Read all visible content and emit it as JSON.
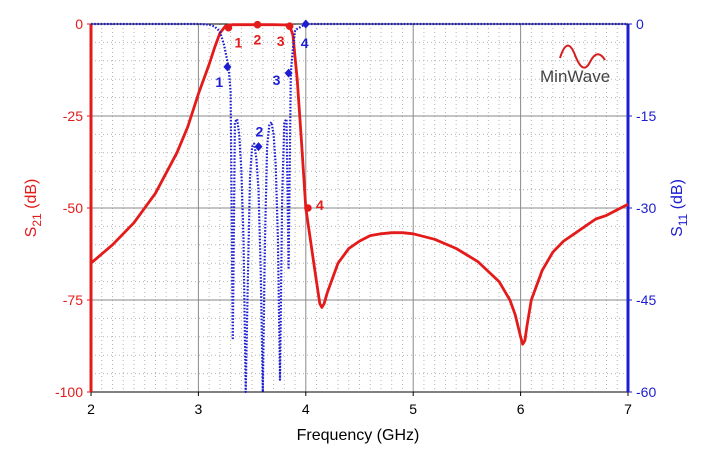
{
  "chart_data": {
    "type": "line",
    "xlabel": "Frequency (GHz)",
    "xlim": [
      2,
      7
    ],
    "x_ticks": [
      "2",
      "3",
      "4",
      "5",
      "6",
      "7"
    ],
    "y_left": {
      "label_main": "S",
      "label_sub": "21",
      "label_unit": " (dB)",
      "lim": [
        -100,
        0
      ],
      "ticks": [
        "0",
        "-25",
        "-50",
        "-75",
        "-100"
      ],
      "color": "#e31b1b"
    },
    "y_right": {
      "label_main": "S",
      "label_sub": "11",
      "label_unit": " (dB)",
      "lim": [
        -60,
        0
      ],
      "ticks": [
        "0",
        "-15",
        "-30",
        "-45",
        "-60"
      ],
      "color": "#1d1dd1"
    },
    "grid": true,
    "logo": {
      "text": "MinWave",
      "color": "#d42020"
    },
    "series": [
      {
        "axis": "left",
        "style": "solid",
        "color": "#e31b1b",
        "x": [
          2.0,
          2.2,
          2.4,
          2.6,
          2.8,
          2.9,
          3.0,
          3.1,
          3.15,
          3.2,
          3.25,
          3.28,
          3.32,
          3.4,
          3.5,
          3.6,
          3.7,
          3.8,
          3.85,
          3.88,
          3.92,
          3.96,
          4.0,
          4.03,
          4.06,
          4.1,
          4.13,
          4.15,
          4.17,
          4.2,
          4.3,
          4.4,
          4.5,
          4.6,
          4.7,
          4.8,
          4.9,
          5.0,
          5.2,
          5.4,
          5.6,
          5.8,
          5.9,
          5.95,
          6.0,
          6.02,
          6.04,
          6.06,
          6.1,
          6.2,
          6.3,
          6.4,
          6.5,
          6.6,
          6.7,
          6.8,
          6.9,
          7.0
        ],
        "y": [
          -65,
          -60,
          -54,
          -46,
          -35,
          -28,
          -19,
          -11,
          -6.5,
          -2.5,
          -0.6,
          -0.3,
          -0.2,
          -0.2,
          -0.2,
          -0.2,
          -0.2,
          -0.25,
          -0.5,
          -3,
          -15,
          -32,
          -50,
          -56,
          -62,
          -70,
          -76,
          -77,
          -76,
          -73,
          -65,
          -61,
          -59,
          -57.5,
          -57,
          -56.7,
          -56.7,
          -57,
          -58.5,
          -61,
          -64.5,
          -70,
          -75,
          -79,
          -85,
          -87,
          -86,
          -82,
          -75,
          -67,
          -62,
          -59,
          -57,
          -55,
          -53,
          -52,
          -50.5,
          -49
        ]
      },
      {
        "axis": "right",
        "style": "dotted",
        "color": "#1d1dd1",
        "x": [
          2.0,
          3.0,
          3.1,
          3.15,
          3.2,
          3.24,
          3.28,
          3.3,
          3.32,
          3.34,
          3.36,
          3.38,
          3.4,
          3.42,
          3.44,
          3.46,
          3.48,
          3.5,
          3.52,
          3.54,
          3.56,
          3.58,
          3.6,
          3.62,
          3.64,
          3.66,
          3.68,
          3.7,
          3.72,
          3.74,
          3.76,
          3.78,
          3.8,
          3.82,
          3.84,
          3.86,
          3.88,
          3.9,
          4.0,
          7.0
        ],
        "y": [
          0,
          0,
          -0.1,
          -0.4,
          -1.2,
          -3.5,
          -7,
          -11,
          -51.5,
          -16,
          -15.5,
          -18,
          -24,
          -35,
          -60,
          -42,
          -25,
          -20,
          -19.5,
          -22,
          -27,
          -40,
          -60,
          -35,
          -20,
          -16.5,
          -16,
          -18,
          -23,
          -35,
          -58,
          -28,
          -16,
          -15.5,
          -40,
          -8,
          -4,
          -1,
          0,
          0
        ]
      }
    ],
    "markers": [
      {
        "series": 0,
        "label": "1",
        "x": 3.28,
        "y": -1.0
      },
      {
        "series": 0,
        "label": "2",
        "x": 3.55,
        "y": -0.2
      },
      {
        "series": 0,
        "label": "3",
        "x": 3.85,
        "y": -0.6
      },
      {
        "series": 0,
        "label": "4",
        "x": 4.02,
        "y": -50
      },
      {
        "series": 1,
        "label": "1",
        "x": 3.27,
        "y": -7
      },
      {
        "series": 1,
        "label": "2",
        "x": 3.56,
        "y": -20
      },
      {
        "series": 1,
        "label": "3",
        "x": 3.84,
        "y": -8
      },
      {
        "series": 1,
        "label": "4",
        "x": 4.0,
        "y": 0
      }
    ]
  }
}
